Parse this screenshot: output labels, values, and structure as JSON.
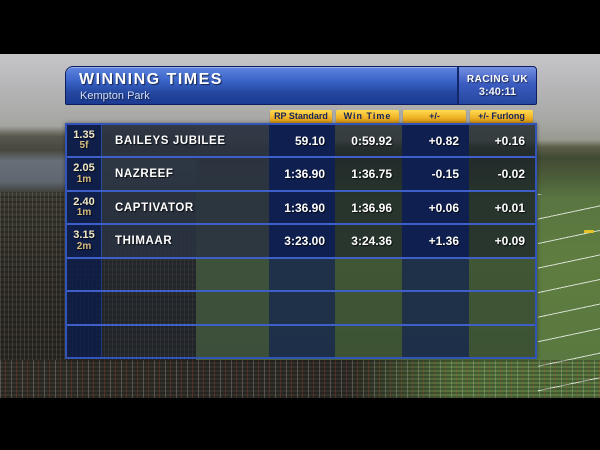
{
  "header": {
    "title": "WINNING TIMES",
    "subtitle": "Kempton Park",
    "channel": "RACING UK",
    "clock": "3:40:11"
  },
  "columns": {
    "rp_standard": "RP Standard",
    "win_time": "Win Time",
    "plus_minus": "+/-",
    "plus_minus_furlong": "+/- Furlong"
  },
  "table": {
    "rows": [
      {
        "time": "1.35",
        "dist": "5f",
        "name": "BAILEYS JUBILEE",
        "rp": "59.10",
        "win": "0:59.92",
        "pm": "+0.82",
        "fur": "+0.16"
      },
      {
        "time": "2.05",
        "dist": "1m",
        "name": "NAZREEF",
        "rp": "1:36.90",
        "win": "1:36.75",
        "pm": "-0.15",
        "fur": "-0.02"
      },
      {
        "time": "2.40",
        "dist": "1m",
        "name": "CAPTIVATOR",
        "rp": "1:36.90",
        "win": "1:36.96",
        "pm": "+0.06",
        "fur": "+0.01"
      },
      {
        "time": "3.15",
        "dist": "2m",
        "name": "THIMAAR",
        "rp": "3:23.00",
        "win": "3:24.36",
        "pm": "+1.36",
        "fur": "+0.09"
      },
      {
        "time": "",
        "dist": "",
        "name": "",
        "rp": "",
        "win": "",
        "pm": "",
        "fur": ""
      },
      {
        "time": "",
        "dist": "",
        "name": "",
        "rp": "",
        "win": "",
        "pm": "",
        "fur": ""
      },
      {
        "time": "",
        "dist": "",
        "name": "",
        "rp": "",
        "win": "",
        "pm": "",
        "fur": ""
      }
    ]
  },
  "colors": {
    "accent_yellow": "#f2b62a",
    "panel_blue": "#2c55b8",
    "cell_navy": "#0f2050",
    "separator_blue": "#3e5ec8"
  }
}
